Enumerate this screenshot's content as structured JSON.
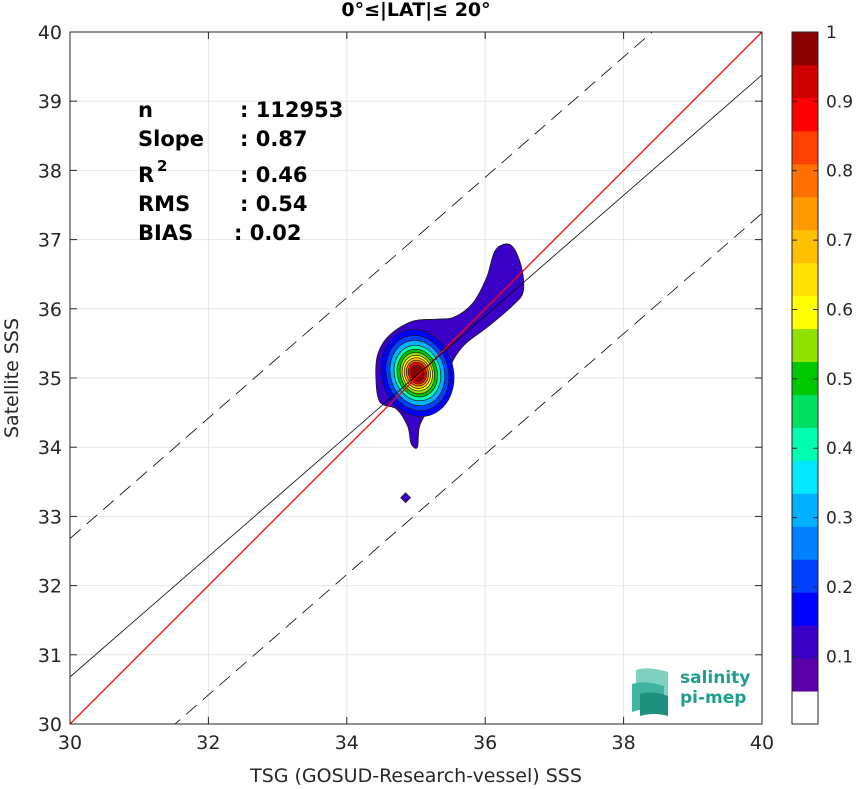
{
  "chart_data": {
    "type": "heatmap",
    "title": "0°≤|LAT|≤ 20°",
    "xlabel": "TSG (GOSUD-Research-vessel) SSS",
    "ylabel": "Satellite SSS",
    "xlim": [
      30,
      40
    ],
    "ylim": [
      30,
      40
    ],
    "xticks": [
      "30",
      "32",
      "34",
      "36",
      "38",
      "40"
    ],
    "yticks": [
      "30",
      "31",
      "32",
      "33",
      "34",
      "35",
      "36",
      "37",
      "38",
      "39",
      "40"
    ],
    "grid": true,
    "stats": [
      {
        "label": "n",
        "value": ": 112953"
      },
      {
        "label": "Slope",
        "value": ": 0.87"
      },
      {
        "label": "R",
        "sup": "2",
        "value": ": 0.46"
      },
      {
        "label": "RMS",
        "value": ": 0.54"
      },
      {
        "label": "BIAS",
        "value": ": 0.02"
      }
    ],
    "regression": {
      "slope": 0.87,
      "intercept": 4.58
    },
    "identity_line": {
      "slope": 1,
      "intercept": 0,
      "color": "#ff0000"
    },
    "dashed_offsets": [
      2.0,
      -2.0
    ],
    "density_peak": {
      "x": 35.0,
      "y": 35.1,
      "value": 1
    },
    "colorbar": {
      "ticks": [
        "0.1",
        "0.2",
        "0.3",
        "0.4",
        "0.5",
        "0.6",
        "0.7",
        "0.8",
        "0.9",
        "1"
      ],
      "range": [
        0,
        1
      ],
      "colors": [
        "#ffffff",
        "#5b00a8",
        "#3a00c8",
        "#0000ff",
        "#0040ff",
        "#0080ff",
        "#00b0ff",
        "#00e8ff",
        "#00ffb0",
        "#00e060",
        "#00c800",
        "#90e000",
        "#ffff00",
        "#ffe000",
        "#ffc000",
        "#ff9a00",
        "#ff7000",
        "#ff4000",
        "#ff0000",
        "#d00000",
        "#8b0000"
      ]
    }
  },
  "logo": {
    "line1": "salinity",
    "line2": "pi-mep"
  }
}
